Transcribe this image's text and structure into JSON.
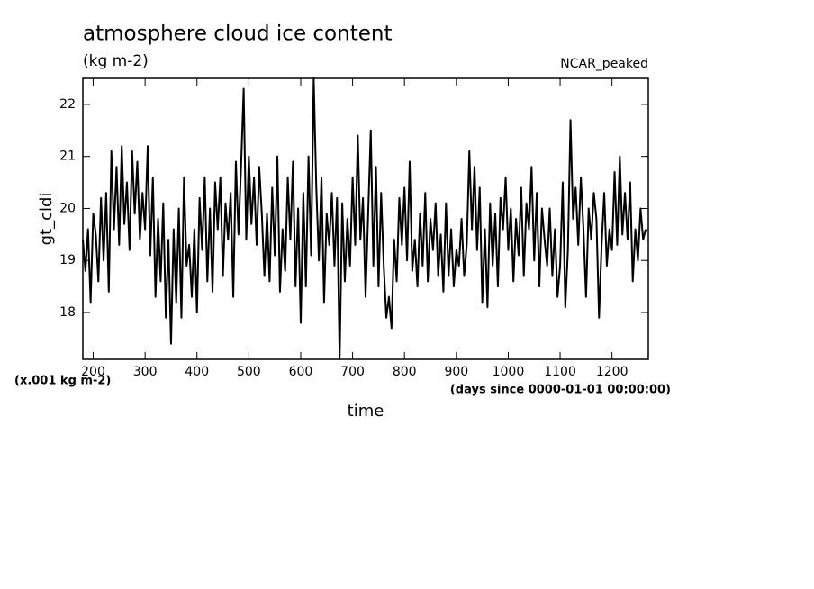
{
  "chart_data": {
    "type": "line",
    "title": "atmosphere cloud ice content",
    "subtitle": "(kg m-2)",
    "annotation": "NCAR_peaked",
    "y_label": "gt_cldi",
    "x_label": "time",
    "y_units": "(x.001 kg m-2)",
    "x_units": "(days since 0000-01-01 00:00:00)",
    "xlim": [
      180,
      1270
    ],
    "ylim": [
      17.1,
      22.5
    ],
    "xticks": [
      200,
      300,
      400,
      500,
      600,
      700,
      800,
      900,
      1000,
      1100,
      1200
    ],
    "yticks": [
      18,
      19,
      20,
      21,
      22
    ],
    "grid": false,
    "series": [
      {
        "name": "gt_cldi",
        "color": "#000000",
        "x": [
          180,
          185,
          190,
          195,
          200,
          205,
          210,
          215,
          220,
          225,
          230,
          235,
          240,
          245,
          250,
          255,
          260,
          265,
          270,
          275,
          280,
          285,
          290,
          295,
          300,
          305,
          310,
          315,
          320,
          325,
          330,
          335,
          340,
          345,
          350,
          355,
          360,
          365,
          370,
          375,
          380,
          385,
          390,
          395,
          400,
          405,
          410,
          415,
          420,
          425,
          430,
          435,
          440,
          445,
          450,
          455,
          460,
          465,
          470,
          475,
          480,
          485,
          490,
          495,
          500,
          505,
          510,
          515,
          520,
          525,
          530,
          535,
          540,
          545,
          550,
          555,
          560,
          565,
          570,
          575,
          580,
          585,
          590,
          595,
          600,
          605,
          610,
          615,
          620,
          625,
          630,
          635,
          640,
          645,
          650,
          655,
          660,
          665,
          670,
          675,
          680,
          685,
          690,
          695,
          700,
          705,
          710,
          715,
          720,
          725,
          730,
          735,
          740,
          745,
          750,
          755,
          760,
          765,
          770,
          775,
          780,
          785,
          790,
          795,
          800,
          805,
          810,
          815,
          820,
          825,
          830,
          835,
          840,
          845,
          850,
          855,
          860,
          865,
          870,
          875,
          880,
          885,
          890,
          895,
          900,
          905,
          910,
          915,
          920,
          925,
          930,
          935,
          940,
          945,
          950,
          955,
          960,
          965,
          970,
          975,
          980,
          985,
          990,
          995,
          1000,
          1005,
          1010,
          1015,
          1020,
          1025,
          1030,
          1035,
          1040,
          1045,
          1050,
          1055,
          1060,
          1065,
          1070,
          1075,
          1080,
          1085,
          1090,
          1095,
          1100,
          1105,
          1110,
          1115,
          1120,
          1125,
          1130,
          1135,
          1140,
          1145,
          1150,
          1155,
          1160,
          1165,
          1170,
          1175,
          1180,
          1185,
          1190,
          1195,
          1200,
          1205,
          1210,
          1215,
          1220,
          1225,
          1230,
          1235,
          1240,
          1245,
          1250,
          1255,
          1260,
          1265
        ],
        "values": [
          19.4,
          18.8,
          19.6,
          18.2,
          19.9,
          19.5,
          18.6,
          20.2,
          19.0,
          20.3,
          18.4,
          21.1,
          19.6,
          20.8,
          19.3,
          21.2,
          19.7,
          20.5,
          19.2,
          21.1,
          19.9,
          20.9,
          19.4,
          20.3,
          19.6,
          21.2,
          19.1,
          20.6,
          18.3,
          19.8,
          18.6,
          20.1,
          17.9,
          19.4,
          17.4,
          19.6,
          18.2,
          20.0,
          17.9,
          20.6,
          18.9,
          19.3,
          18.3,
          19.6,
          18.0,
          20.2,
          19.2,
          20.6,
          18.6,
          20.0,
          18.4,
          20.5,
          19.6,
          20.6,
          18.7,
          20.1,
          19.4,
          20.3,
          18.3,
          20.9,
          19.5,
          20.8,
          22.3,
          19.4,
          21.0,
          19.7,
          20.6,
          19.3,
          20.8,
          19.9,
          18.7,
          19.9,
          18.6,
          20.4,
          19.1,
          21.0,
          18.4,
          19.6,
          18.8,
          20.6,
          19.4,
          20.9,
          18.5,
          20.0,
          17.8,
          20.3,
          18.5,
          21.0,
          19.1,
          22.5,
          20.4,
          19.0,
          20.6,
          18.2,
          19.9,
          19.3,
          20.3,
          18.9,
          20.2,
          17.1,
          20.1,
          18.6,
          19.8,
          18.9,
          20.6,
          19.3,
          21.4,
          19.4,
          20.2,
          18.3,
          19.9,
          21.5,
          18.9,
          20.8,
          18.5,
          20.3,
          18.9,
          17.9,
          18.3,
          17.7,
          19.4,
          18.6,
          20.2,
          19.3,
          20.4,
          19.0,
          20.9,
          18.8,
          19.4,
          18.5,
          19.9,
          18.9,
          20.3,
          18.6,
          19.8,
          19.2,
          20.1,
          18.7,
          19.5,
          18.4,
          20.1,
          18.7,
          19.6,
          18.5,
          19.2,
          18.9,
          19.8,
          18.7,
          19.3,
          21.1,
          19.6,
          20.8,
          19.2,
          20.4,
          18.2,
          19.6,
          18.1,
          20.1,
          18.9,
          19.9,
          18.5,
          20.2,
          19.6,
          20.6,
          19.2,
          20.0,
          18.6,
          19.8,
          19.1,
          20.4,
          18.7,
          20.1,
          19.6,
          20.8,
          19.0,
          20.3,
          18.5,
          20.0,
          19.4,
          18.9,
          20.0,
          18.7,
          19.6,
          18.3,
          18.9,
          20.5,
          18.1,
          19.2,
          21.7,
          19.8,
          20.4,
          19.3,
          20.6,
          19.6,
          18.3,
          20.0,
          19.4,
          20.3,
          19.8,
          17.9,
          19.3,
          20.3,
          18.9,
          19.6,
          19.2,
          20.7,
          19.3,
          21.0,
          19.5,
          20.3,
          19.4,
          20.5,
          18.6,
          19.6,
          19.0,
          20.0,
          19.4,
          19.6
        ]
      }
    ]
  }
}
